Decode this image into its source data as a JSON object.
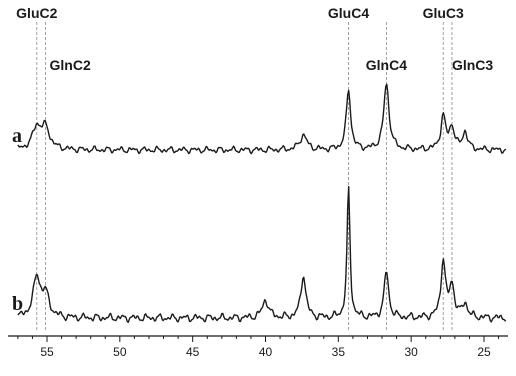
{
  "chart_data": {
    "type": "line",
    "title": "",
    "xlabel": "",
    "ylabel": "",
    "x_reversed": true,
    "xlim": [
      57,
      23.5
    ],
    "x_ticks": [
      55,
      50,
      45,
      40,
      35,
      30,
      25
    ],
    "grid": false,
    "legend": "none",
    "line_color": "#1a1a1a",
    "marker_color": "#8a8a8a",
    "markers": [
      {
        "label": "GluC2",
        "x": 55.7
      },
      {
        "label": "GlnC2",
        "x": 55.1
      },
      {
        "label": "GluC4",
        "x": 34.3
      },
      {
        "label": "GlnC4",
        "x": 31.7
      },
      {
        "label": "GluC3",
        "x": 27.8
      },
      {
        "label": "GlnC3",
        "x": 27.2
      }
    ],
    "series": [
      {
        "name": "a",
        "baseline": 0,
        "noise": 0.06,
        "peaks": [
          {
            "x": 55.7,
            "h": 0.36,
            "w": 0.35
          },
          {
            "x": 55.1,
            "h": 0.34,
            "w": 0.35
          },
          {
            "x": 37.4,
            "h": 0.25,
            "w": 0.28
          },
          {
            "x": 34.3,
            "h": 1.0,
            "w": 0.18
          },
          {
            "x": 31.7,
            "h": 1.1,
            "w": 0.22
          },
          {
            "x": 27.8,
            "h": 0.55,
            "w": 0.2
          },
          {
            "x": 27.2,
            "h": 0.38,
            "w": 0.2
          },
          {
            "x": 26.3,
            "h": 0.3,
            "w": 0.2
          }
        ]
      },
      {
        "name": "b",
        "baseline": 0,
        "noise": 0.06,
        "peaks": [
          {
            "x": 55.7,
            "h": 0.55,
            "w": 0.3
          },
          {
            "x": 55.1,
            "h": 0.3,
            "w": 0.3
          },
          {
            "x": 40.0,
            "h": 0.25,
            "w": 0.25
          },
          {
            "x": 37.4,
            "h": 0.6,
            "w": 0.2
          },
          {
            "x": 34.3,
            "h": 1.8,
            "w": 0.12
          },
          {
            "x": 31.7,
            "h": 0.65,
            "w": 0.18
          },
          {
            "x": 27.8,
            "h": 0.8,
            "w": 0.18
          },
          {
            "x": 27.2,
            "h": 0.45,
            "w": 0.2
          },
          {
            "x": 26.3,
            "h": 0.2,
            "w": 0.2
          }
        ]
      }
    ]
  }
}
